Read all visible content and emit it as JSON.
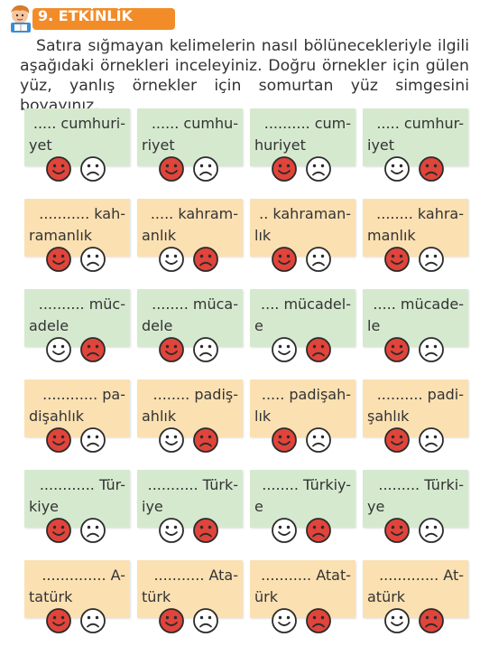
{
  "header": {
    "title": "9. ETKİNLİK",
    "icon": "student-reading-mascot-icon"
  },
  "instructions": "Satıra sığmayan kelimelerin nasıl bölünecekleriyle ilgili aşağıdaki örnekleri inceleyiniz. Doğru örnekler için gülen yüz, yanlış örnekler için somurtan yüz simgesini boyayınız.",
  "colors": {
    "badge": "#f28c28",
    "card_green": "#d5e9cf",
    "card_orange": "#fbe0b2",
    "paint_red": "#e0443a"
  },
  "rows": [
    {
      "color": "green",
      "cards": [
        {
          "line1": "..... cumhuri-",
          "line2": "yet",
          "painted": "smile"
        },
        {
          "line1": "...... cumhu-",
          "line2": "riyet",
          "painted": "smile"
        },
        {
          "line1": ".......... cum-",
          "line2": "huriyet",
          "painted": "smile"
        },
        {
          "line1": "..... cumhur-",
          "line2": "iyet",
          "painted": "frown"
        }
      ]
    },
    {
      "color": "orange",
      "cards": [
        {
          "line1": "........... kah-",
          "line2": "ramanlık",
          "painted": "smile"
        },
        {
          "line1": "..... kahram-",
          "line2": "anlık",
          "painted": "frown"
        },
        {
          "line1": ".. kahraman-",
          "line2": "lık",
          "painted": "smile"
        },
        {
          "line1": "........ kahra-",
          "line2": "manlık",
          "painted": "smile"
        }
      ]
    },
    {
      "color": "green",
      "cards": [
        {
          "line1": ".......... müc-",
          "line2": "adele",
          "painted": "frown"
        },
        {
          "line1": "........ müca-",
          "line2": "dele",
          "painted": "smile"
        },
        {
          "line1": ".... mücadel-",
          "line2": "e",
          "painted": "frown"
        },
        {
          "line1": "..... mücade-",
          "line2": "le",
          "painted": "smile"
        }
      ]
    },
    {
      "color": "orange",
      "cards": [
        {
          "line1": "............ pa-",
          "line2": "dişahlık",
          "painted": "smile"
        },
        {
          "line1": "........ padiş-",
          "line2": "ahlık",
          "painted": "frown"
        },
        {
          "line1": "..... padişah-",
          "line2": "lık",
          "painted": "smile"
        },
        {
          "line1": ".......... padi-",
          "line2": "şahlık",
          "painted": "smile"
        }
      ]
    },
    {
      "color": "green",
      "cards": [
        {
          "line1": "............ Tür-",
          "line2": "kiye",
          "painted": "smile"
        },
        {
          "line1": "........... Türk-",
          "line2": "iye",
          "painted": "frown"
        },
        {
          "line1": "........ Türkiy-",
          "line2": "e",
          "painted": "frown"
        },
        {
          "line1": "......... Türki-",
          "line2": "ye",
          "painted": "smile"
        }
      ]
    },
    {
      "color": "orange",
      "cards": [
        {
          "line1": ".............. A-",
          "line2": "tatürk",
          "painted": "smile"
        },
        {
          "line1": "........... Ata-",
          "line2": "türk",
          "painted": "smile"
        },
        {
          "line1": "........... Atat-",
          "line2": "ürk",
          "painted": "frown"
        },
        {
          "line1": "............. At-",
          "line2": "atürk",
          "painted": "frown"
        }
      ]
    }
  ]
}
